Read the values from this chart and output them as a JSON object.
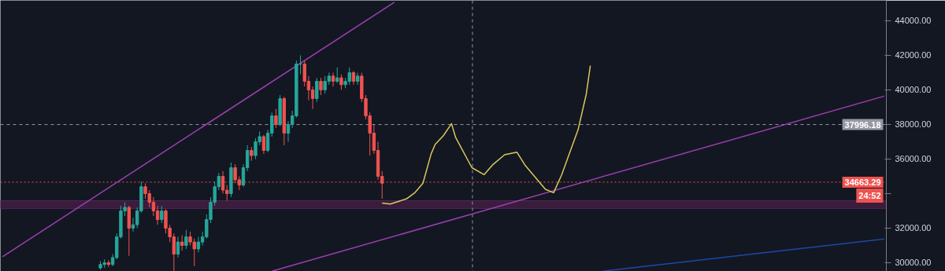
{
  "chart_data": {
    "type": "candlestick",
    "categories": [
      null,
      null,
      null,
      null,
      null,
      null,
      null,
      null,
      null,
      null,
      null,
      null,
      null,
      null,
      null,
      null,
      null,
      null,
      null,
      null,
      null,
      null,
      null,
      null,
      null,
      null,
      null,
      null,
      null,
      null,
      null,
      null,
      null,
      null,
      null,
      null,
      null,
      null,
      null,
      null,
      null,
      null,
      null,
      null,
      null,
      null,
      null,
      null,
      null,
      null,
      null,
      null,
      null,
      null,
      null,
      null,
      null,
      null,
      null,
      null,
      null,
      null,
      null,
      null,
      null,
      null,
      null,
      null,
      null,
      null,
      null,
      null,
      null,
      null,
      null,
      null,
      null,
      null,
      null,
      null,
      null,
      null,
      null,
      null,
      null,
      null,
      null,
      null,
      null,
      null,
      null,
      null,
      null,
      null,
      null,
      null,
      null,
      null,
      null,
      null,
      null,
      null,
      null,
      null,
      null,
      null,
      null,
      null,
      null,
      null,
      null,
      null,
      null,
      null,
      null,
      null,
      null,
      null,
      null,
      null,
      null,
      null,
      null,
      null,
      null,
      null,
      null,
      null,
      null,
      null,
      null,
      null,
      null,
      null,
      null,
      null,
      null,
      null,
      null,
      null,
      null,
      null,
      null,
      null,
      null,
      null,
      null,
      null,
      null,
      null,
      null,
      null,
      null,
      null,
      null,
      null,
      null,
      null,
      null,
      null,
      null,
      null,
      null,
      null,
      null,
      null,
      null,
      null,
      null,
      null,
      null,
      null,
      null,
      null,
      null,
      null,
      null,
      null,
      null,
      null,
      null,
      null,
      null,
      null,
      null,
      null,
      null,
      null,
      null,
      null,
      null,
      null,
      null,
      null,
      null,
      null,
      null,
      null,
      null,
      null,
      null,
      null,
      null,
      null,
      null,
      null,
      null,
      null,
      null,
      null,
      null,
      null,
      null,
      null,
      null,
      null,
      null
    ],
    "ohlc": [
      null,
      null,
      null,
      null,
      null,
      null,
      null,
      null,
      null,
      null,
      null,
      null,
      null,
      null,
      null,
      null,
      null,
      null,
      null,
      null,
      null,
      null,
      null,
      null,
      [
        29700,
        30100,
        29600,
        29900
      ],
      [
        29900,
        30200,
        29700,
        30000
      ],
      [
        30000,
        30150,
        29750,
        29900
      ],
      [
        29900,
        30500,
        29800,
        30300
      ],
      [
        30300,
        31700,
        30200,
        31500
      ],
      [
        31500,
        33300,
        31400,
        33000
      ],
      [
        33000,
        33500,
        32700,
        33200
      ],
      [
        33200,
        33300,
        30400,
        32000
      ],
      [
        32000,
        32600,
        31800,
        32200
      ],
      [
        32200,
        33200,
        32000,
        33000
      ],
      [
        33000,
        34700,
        32900,
        34400
      ],
      [
        34400,
        34600,
        33700,
        34000
      ],
      [
        34000,
        34200,
        33200,
        33500
      ],
      [
        33500,
        33800,
        32700,
        33000
      ],
      [
        33000,
        33300,
        32200,
        32500
      ],
      [
        32500,
        33300,
        32300,
        33000
      ],
      [
        33000,
        33100,
        31700,
        32000
      ],
      [
        32000,
        32200,
        31200,
        31500
      ],
      [
        31500,
        31700,
        29500,
        30500
      ],
      [
        30500,
        31500,
        30300,
        31200
      ],
      [
        31200,
        31600,
        30700,
        31000
      ],
      [
        31000,
        31900,
        30800,
        31500
      ],
      [
        31500,
        31800,
        31000,
        31200
      ],
      [
        31200,
        31400,
        29800,
        30800
      ],
      [
        30800,
        31500,
        30600,
        31200
      ],
      [
        31200,
        31800,
        31000,
        31500
      ],
      [
        31500,
        32800,
        31400,
        32500
      ],
      [
        32500,
        33800,
        32300,
        33500
      ],
      [
        33500,
        34700,
        33300,
        34400
      ],
      [
        34400,
        35200,
        34200,
        35000
      ],
      [
        35000,
        35300,
        34000,
        34200
      ],
      [
        34200,
        34500,
        33600,
        34000
      ],
      [
        34000,
        35800,
        33800,
        35500
      ],
      [
        35500,
        35700,
        34600,
        34800
      ],
      [
        34800,
        35000,
        34200,
        34500
      ],
      [
        34500,
        35700,
        34400,
        35500
      ],
      [
        35500,
        36800,
        35300,
        36500
      ],
      [
        36500,
        36700,
        35900,
        36200
      ],
      [
        36200,
        37200,
        36000,
        37000
      ],
      [
        37000,
        37600,
        36800,
        37300
      ],
      [
        37300,
        37400,
        36300,
        36500
      ],
      [
        36500,
        37700,
        36400,
        37500
      ],
      [
        37500,
        38700,
        37300,
        38500
      ],
      [
        38500,
        38900,
        37800,
        38000
      ],
      [
        38000,
        39700,
        37900,
        39500
      ],
      [
        39500,
        39600,
        36800,
        37500
      ],
      [
        37500,
        38200,
        37000,
        38000
      ],
      [
        38000,
        38800,
        37800,
        38500
      ],
      [
        38500,
        41700,
        38400,
        41500
      ],
      [
        41500,
        42000,
        40900,
        41500
      ],
      [
        41500,
        41700,
        40200,
        40500
      ],
      [
        40500,
        40800,
        39400,
        40000
      ],
      [
        40000,
        40200,
        38900,
        39500
      ],
      [
        39500,
        40700,
        39300,
        40500
      ],
      [
        40500,
        40700,
        39700,
        40000
      ],
      [
        40000,
        40800,
        39800,
        40500
      ],
      [
        40500,
        41000,
        40300,
        40800
      ],
      [
        40800,
        41000,
        40200,
        40500
      ],
      [
        40500,
        41300,
        40400,
        40700
      ],
      [
        40700,
        40900,
        40000,
        40300
      ],
      [
        40300,
        40700,
        40100,
        40500
      ],
      [
        40500,
        41300,
        40300,
        41000
      ],
      [
        41000,
        41100,
        40300,
        40500
      ],
      [
        40500,
        41000,
        40300,
        40800
      ],
      [
        40800,
        41000,
        39300,
        39500
      ],
      [
        39500,
        39700,
        38300,
        38500
      ],
      [
        38500,
        38700,
        36200,
        37500
      ],
      [
        37500,
        38000,
        36300,
        36500
      ],
      [
        36500,
        37000,
        34800,
        35000
      ],
      [
        35000,
        35300,
        33700,
        34600
      ],
      null,
      null,
      null,
      null,
      null,
      null,
      null,
      null,
      null,
      null,
      null,
      null,
      null,
      null,
      null,
      null,
      null,
      null,
      null,
      null,
      null,
      null,
      null,
      null,
      null,
      null,
      null,
      null,
      null,
      null,
      null,
      null,
      null,
      null,
      null,
      null,
      null,
      null,
      null,
      null,
      null,
      null,
      null,
      null,
      null,
      null,
      null,
      null,
      null,
      null,
      null,
      null,
      null,
      null,
      null,
      null,
      null,
      null,
      null,
      null,
      null,
      null,
      null,
      null,
      null,
      null,
      null,
      null,
      null,
      null,
      null,
      null,
      null,
      null,
      null,
      null,
      null,
      null,
      null,
      null,
      null,
      null,
      null,
      null,
      null,
      null,
      null,
      null,
      null,
      null,
      null,
      null,
      null,
      null,
      null,
      null,
      null,
      null,
      null,
      null,
      null,
      null,
      null,
      null,
      null,
      null,
      null,
      null,
      null,
      null,
      null,
      null,
      null,
      null,
      null,
      null,
      null,
      null,
      null,
      null,
      null,
      null,
      null
    ],
    "series": [
      {
        "type": "line",
        "color": "#9c3fb0",
        "values": [
          30350,
          null,
          null,
          null,
          null,
          null,
          null,
          null,
          null,
          null,
          null,
          null,
          null,
          null,
          null,
          null,
          null,
          null,
          null,
          null,
          null,
          null,
          null,
          null,
          null,
          null,
          null,
          null,
          null,
          null,
          null,
          null,
          null,
          null,
          null,
          null,
          null,
          null,
          null,
          null,
          null,
          null,
          null,
          null,
          null,
          null,
          null,
          null,
          null,
          null,
          null,
          null,
          null,
          null,
          null,
          null,
          null,
          null,
          null,
          null,
          null,
          null,
          null,
          null,
          null,
          null,
          null,
          null,
          null,
          null,
          null,
          null,
          null,
          null,
          null,
          null,
          null,
          null,
          null,
          null,
          null,
          null,
          null,
          null,
          null,
          null,
          null,
          null,
          null,
          null,
          null,
          null,
          null,
          null,
          null,
          null,
          45070,
          null,
          null,
          null,
          null,
          null,
          null,
          null,
          null,
          null,
          null,
          null,
          null,
          null,
          null,
          null,
          null,
          null,
          null,
          null,
          null,
          null,
          null,
          null,
          null,
          null,
          null,
          null,
          null,
          null,
          null,
          null,
          null,
          null,
          null,
          null,
          null,
          null,
          null,
          null,
          null,
          null,
          null,
          null,
          null,
          null,
          null,
          null,
          null,
          null,
          null,
          null,
          null,
          null,
          null,
          null,
          null,
          null,
          null,
          null,
          null,
          null,
          null,
          null,
          null,
          null,
          null,
          null,
          null,
          null,
          null,
          null,
          null,
          null,
          null,
          null,
          null,
          null,
          null,
          null,
          null,
          null,
          null,
          null,
          null,
          null,
          null,
          null,
          null,
          null,
          null,
          null,
          null,
          null,
          null,
          null,
          null,
          null,
          null,
          null,
          null,
          null,
          null,
          null,
          null,
          null,
          null,
          null,
          null,
          null,
          null,
          null,
          null,
          null,
          null,
          null,
          null,
          null,
          null,
          null,
          null
        ]
      },
      {
        "type": "line",
        "color": "#9c3fb0",
        "values": [
          null,
          null,
          null,
          null,
          null,
          null,
          null,
          null,
          null,
          null,
          null,
          null,
          null,
          null,
          null,
          null,
          null,
          null,
          null,
          null,
          null,
          null,
          null,
          null,
          null,
          null,
          null,
          null,
          null,
          null,
          null,
          null,
          null,
          null,
          null,
          null,
          null,
          null,
          null,
          null,
          null,
          null,
          null,
          null,
          null,
          null,
          null,
          null,
          null,
          null,
          null,
          null,
          null,
          null,
          null,
          null,
          null,
          null,
          null,
          null,
          null,
          null,
          null,
          null,
          null,
          null,
          29510,
          null,
          null,
          null,
          null,
          null,
          null,
          null,
          null,
          null,
          null,
          null,
          null,
          null,
          null,
          null,
          null,
          null,
          null,
          null,
          null,
          null,
          null,
          null,
          null,
          null,
          null,
          null,
          null,
          null,
          null,
          null,
          null,
          null,
          null,
          null,
          null,
          null,
          null,
          null,
          null,
          null,
          null,
          null,
          null,
          null,
          null,
          null,
          null,
          null,
          null,
          null,
          null,
          null,
          null,
          null,
          null,
          null,
          null,
          null,
          null,
          null,
          null,
          null,
          null,
          null,
          null,
          null,
          null,
          null,
          null,
          null,
          null,
          null,
          null,
          null,
          null,
          null,
          null,
          null,
          null,
          null,
          null,
          null,
          null,
          null,
          null,
          null,
          null,
          null,
          null,
          null,
          null,
          null,
          null,
          null,
          null,
          null,
          null,
          null,
          null,
          null,
          null,
          null,
          null,
          null,
          null,
          null,
          null,
          null,
          null,
          null,
          null,
          null,
          null,
          null,
          null,
          null,
          null,
          null,
          null,
          null,
          null,
          null,
          null,
          null,
          null,
          null,
          null,
          null,
          null,
          null,
          null,
          null,
          null,
          null,
          null,
          null,
          null,
          null,
          null,
          null,
          null,
          null,
          null,
          null,
          null,
          null,
          null,
          null,
          39640
        ]
      },
      {
        "type": "line",
        "color": "#1e47a8",
        "values": [
          null,
          null,
          null,
          null,
          null,
          null,
          null,
          null,
          null,
          null,
          null,
          null,
          null,
          null,
          null,
          null,
          null,
          null,
          null,
          null,
          null,
          null,
          null,
          null,
          null,
          null,
          null,
          null,
          null,
          null,
          null,
          null,
          null,
          null,
          null,
          null,
          null,
          null,
          null,
          null,
          null,
          null,
          null,
          null,
          null,
          null,
          null,
          null,
          null,
          null,
          null,
          null,
          null,
          null,
          null,
          null,
          null,
          null,
          null,
          null,
          null,
          null,
          null,
          null,
          null,
          null,
          null,
          null,
          null,
          null,
          null,
          null,
          null,
          null,
          null,
          null,
          null,
          null,
          null,
          null,
          null,
          null,
          null,
          null,
          null,
          null,
          null,
          null,
          null,
          null,
          null,
          null,
          null,
          null,
          null,
          null,
          null,
          null,
          null,
          null,
          null,
          null,
          null,
          null,
          null,
          null,
          null,
          null,
          null,
          null,
          null,
          null,
          null,
          null,
          null,
          null,
          null,
          null,
          null,
          null,
          null,
          null,
          null,
          null,
          null,
          null,
          null,
          null,
          null,
          null,
          null,
          null,
          null,
          null,
          null,
          null,
          null,
          null,
          null,
          null,
          null,
          null,
          null,
          null,
          null,
          null,
          null,
          29510,
          null,
          null,
          null,
          null,
          null,
          null,
          null,
          null,
          null,
          null,
          null,
          null,
          null,
          null,
          null,
          null,
          null,
          null,
          null,
          null,
          null,
          null,
          null,
          null,
          null,
          null,
          null,
          null,
          null,
          null,
          null,
          null,
          null,
          null,
          null,
          null,
          null,
          null,
          null,
          null,
          null,
          null,
          null,
          null,
          null,
          null,
          null,
          null,
          null,
          null,
          null,
          null,
          null,
          null,
          null,
          null,
          null,
          null,
          null,
          null,
          null,
          null,
          null,
          null,
          null,
          null,
          null,
          null,
          31380
        ]
      },
      {
        "type": "line",
        "color": "#d9c85a",
        "values": [
          null,
          null,
          null,
          null,
          null,
          null,
          null,
          null,
          null,
          null,
          null,
          null,
          null,
          null,
          null,
          null,
          null,
          null,
          null,
          null,
          null,
          null,
          null,
          null,
          null,
          null,
          null,
          null,
          null,
          null,
          null,
          null,
          null,
          null,
          null,
          null,
          null,
          null,
          null,
          null,
          null,
          null,
          null,
          null,
          null,
          null,
          null,
          null,
          null,
          null,
          null,
          null,
          null,
          null,
          null,
          null,
          null,
          null,
          null,
          null,
          null,
          null,
          null,
          null,
          null,
          null,
          null,
          null,
          null,
          null,
          null,
          null,
          null,
          null,
          null,
          null,
          null,
          null,
          null,
          null,
          null,
          null,
          null,
          null,
          null,
          null,
          null,
          null,
          null,
          null,
          null,
          null,
          null,
          33450,
          null,
          33400,
          null,
          null,
          null,
          33700,
          null,
          34050,
          null,
          34600,
          null,
          36300,
          36850,
          null,
          37350,
          null,
          38050,
          37250,
          null,
          null,
          null,
          35500,
          null,
          null,
          35100,
          null,
          35650,
          null,
          null,
          36250,
          null,
          null,
          36400,
          null,
          35650,
          null,
          null,
          null,
          null,
          34250,
          null,
          34050,
          null,
          35100,
          null,
          null,
          null,
          37700,
          null,
          39750,
          41400,
          null,
          null,
          null,
          null,
          null,
          null,
          null,
          null,
          null,
          null,
          null,
          null,
          null,
          null,
          null,
          null,
          null,
          null,
          null,
          null,
          null,
          null,
          null,
          null,
          null,
          null,
          null,
          null,
          null,
          null,
          null,
          null,
          null,
          null,
          null,
          null,
          null,
          null,
          null,
          null,
          null,
          null,
          null,
          null,
          null,
          null,
          null,
          null,
          null,
          null,
          null,
          null,
          null,
          null,
          null,
          null,
          null,
          null,
          null,
          null,
          null,
          null,
          null,
          null,
          null,
          null,
          null,
          null,
          null,
          null,
          null,
          null
        ]
      }
    ],
    "ylim": [
      29500,
      45180
    ],
    "yticks": [
      {
        "value": 30000,
        "label": "30000.00"
      },
      {
        "value": 32000,
        "label": "32000.00"
      },
      {
        "value": 34000,
        "label": null
      },
      {
        "value": 36000,
        "label": "36000.00"
      },
      {
        "value": 38000,
        "label": "38000.00"
      },
      {
        "value": 40000,
        "label": "40000.00"
      },
      {
        "value": 42000,
        "label": "42000.00"
      },
      {
        "value": 44000,
        "label": "44000.00"
      }
    ],
    "tick_labels": "y",
    "grid": false,
    "ref_lines": [
      {
        "axis": "y",
        "value": 34663.29,
        "label": "34663.29",
        "color": "#ef5350",
        "line_style": "dotted"
      },
      {
        "axis": "y",
        "value": 37996.18,
        "label": "37996.18",
        "color": "#9598a1",
        "line_style": "dashed"
      }
    ],
    "bands": [
      {
        "axis": "y",
        "from": 33140,
        "to": 33590,
        "label": null,
        "color": "#3a1c3d"
      }
    ],
    "annotations": [
      "24:52"
    ]
  }
}
